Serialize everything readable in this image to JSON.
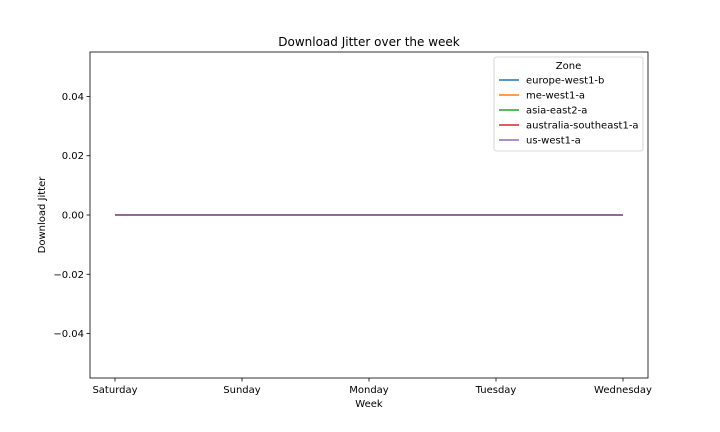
{
  "chart_data": {
    "type": "line",
    "title": "Download Jitter over the week",
    "xlabel": "Week",
    "ylabel": "Download Jitter",
    "categories": [
      "Saturday",
      "Sunday",
      "Monday",
      "Tuesday",
      "Wednesday"
    ],
    "ylim": [
      -0.055,
      0.055
    ],
    "yticks": [
      -0.04,
      -0.02,
      0.0,
      0.02,
      0.04
    ],
    "ytick_labels": [
      "−0.04",
      "−0.02",
      "0.00",
      "0.02",
      "0.04"
    ],
    "grid": false,
    "legend": {
      "title": "Zone",
      "placement": "top-right"
    },
    "series": [
      {
        "name": "europe-west1-b",
        "color": "#1f77b4",
        "values": [
          0,
          0,
          0,
          0,
          0
        ]
      },
      {
        "name": "me-west1-a",
        "color": "#ff7f0e",
        "values": [
          0,
          0,
          0,
          0,
          0
        ]
      },
      {
        "name": "asia-east2-a",
        "color": "#2ca02c",
        "values": [
          0,
          0,
          0,
          0,
          0
        ]
      },
      {
        "name": "australia-southeast1-a",
        "color": "#d62728",
        "values": [
          0,
          0,
          0,
          0,
          0
        ]
      },
      {
        "name": "us-west1-a",
        "color": "#9467bd",
        "values": [
          0,
          0,
          0,
          0,
          0
        ]
      }
    ]
  }
}
